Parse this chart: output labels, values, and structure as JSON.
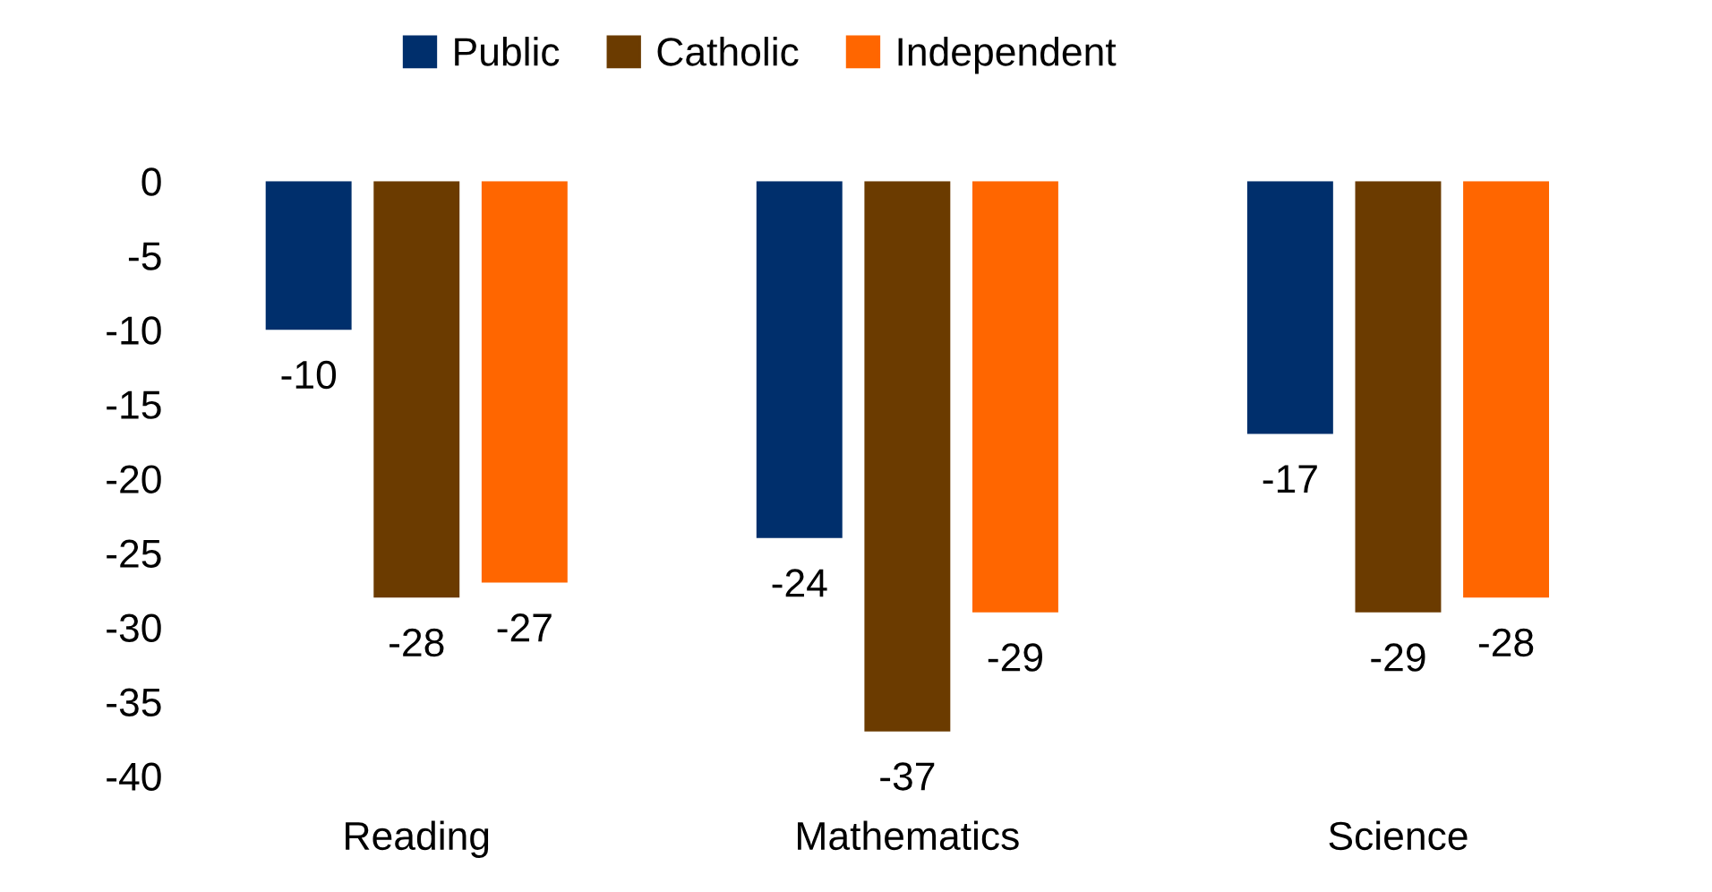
{
  "chart_data": {
    "type": "bar",
    "categories": [
      "Reading",
      "Mathematics",
      "Science"
    ],
    "series": [
      {
        "name": "Public",
        "color": "#002f6c",
        "values": [
          -10,
          -24,
          -17
        ]
      },
      {
        "name": "Catholic",
        "color": "#6b3b00",
        "values": [
          -28,
          -37,
          -29
        ]
      },
      {
        "name": "Independent",
        "color": "#ff6600",
        "values": [
          -27,
          -29,
          -28
        ]
      }
    ],
    "ylim": [
      -40,
      0
    ],
    "yticks": [
      -40,
      -35,
      -30,
      -25,
      -20,
      -15,
      -10,
      -5,
      0
    ],
    "data_labels": true,
    "grid": false,
    "legend": "top"
  }
}
